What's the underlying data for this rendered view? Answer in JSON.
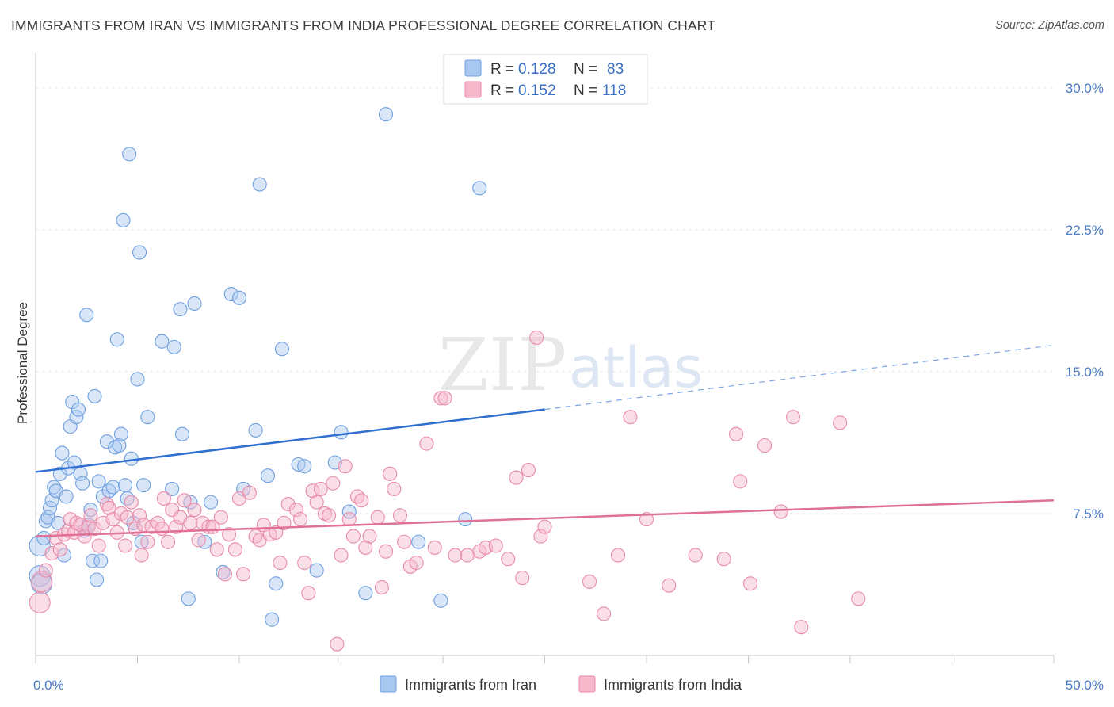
{
  "title": "IMMIGRANTS FROM IRAN VS IMMIGRANTS FROM INDIA PROFESSIONAL DEGREE CORRELATION CHART",
  "source": "Source: ZipAtlas.com",
  "watermark": {
    "zip": "ZIP",
    "atlas": "atlas"
  },
  "legend": {
    "rows": [
      {
        "r_label": "R =",
        "r_value": "0.128",
        "n_label": "N =",
        "n_value": "83",
        "color": "#a9c8f0"
      },
      {
        "r_label": "R =",
        "r_value": "0.152",
        "n_label": "N =",
        "n_value": "118",
        "color": "#f6b8cb"
      }
    ]
  },
  "bottom_legend": [
    {
      "label": "Immigrants from Iran",
      "color": "#a9c8f0"
    },
    {
      "label": "Immigrants from India",
      "color": "#f6b8cb"
    }
  ],
  "chart_data": {
    "type": "scatter",
    "title": "IMMIGRANTS FROM IRAN VS IMMIGRANTS FROM INDIA PROFESSIONAL DEGREE CORRELATION CHART",
    "xlabel": "",
    "ylabel": "Professional Degree",
    "xlim": [
      0,
      50
    ],
    "ylim": [
      0,
      31.5
    ],
    "x_tick_labels": [
      "0.0%",
      "50.0%"
    ],
    "y_ticks": [
      7.5,
      15.0,
      22.5,
      30.0
    ],
    "y_tick_labels": [
      "7.5%",
      "15.0%",
      "22.5%",
      "30.0%"
    ],
    "grid": true,
    "legend_position": "top-center",
    "series": [
      {
        "name": "Immigrants from Iran",
        "color": "#6f9fe0",
        "fill": "#a9c8f0",
        "R": 0.128,
        "N": 83,
        "trend": {
          "x0": 0,
          "y0": 9.7,
          "x1": 25,
          "y1": 13.0,
          "dash_to_x": 50,
          "dash_to_y": 16.4
        },
        "points": [
          [
            0.2,
            5.8
          ],
          [
            0.2,
            4.2
          ],
          [
            0.3,
            3.8
          ],
          [
            0.4,
            6.2
          ],
          [
            0.5,
            7.1
          ],
          [
            0.6,
            7.3
          ],
          [
            0.7,
            7.8
          ],
          [
            0.8,
            8.2
          ],
          [
            0.9,
            8.9
          ],
          [
            1.0,
            8.7
          ],
          [
            1.1,
            7.0
          ],
          [
            1.2,
            9.6
          ],
          [
            1.3,
            10.7
          ],
          [
            1.4,
            5.3
          ],
          [
            1.5,
            8.4
          ],
          [
            1.6,
            9.9
          ],
          [
            1.7,
            12.1
          ],
          [
            1.8,
            13.4
          ],
          [
            1.9,
            10.2
          ],
          [
            2.0,
            12.6
          ],
          [
            2.1,
            13.0
          ],
          [
            2.2,
            9.6
          ],
          [
            2.3,
            9.1
          ],
          [
            2.4,
            6.6
          ],
          [
            2.5,
            18.0
          ],
          [
            2.6,
            6.9
          ],
          [
            2.7,
            7.7
          ],
          [
            2.8,
            5.0
          ],
          [
            2.9,
            13.7
          ],
          [
            3.0,
            4.0
          ],
          [
            3.1,
            9.2
          ],
          [
            3.2,
            5.0
          ],
          [
            3.3,
            8.4
          ],
          [
            3.5,
            11.3
          ],
          [
            3.6,
            8.7
          ],
          [
            3.8,
            8.9
          ],
          [
            3.9,
            11.0
          ],
          [
            4.0,
            16.7
          ],
          [
            4.1,
            11.1
          ],
          [
            4.2,
            11.7
          ],
          [
            4.3,
            23.0
          ],
          [
            4.4,
            9.0
          ],
          [
            4.5,
            8.3
          ],
          [
            4.6,
            26.5
          ],
          [
            4.7,
            10.4
          ],
          [
            4.8,
            7.0
          ],
          [
            5.0,
            14.6
          ],
          [
            5.1,
            21.3
          ],
          [
            5.2,
            6.0
          ],
          [
            5.3,
            9.0
          ],
          [
            5.5,
            12.6
          ],
          [
            6.2,
            16.6
          ],
          [
            6.7,
            8.8
          ],
          [
            6.8,
            16.3
          ],
          [
            7.1,
            18.3
          ],
          [
            7.2,
            11.7
          ],
          [
            7.5,
            3.0
          ],
          [
            7.6,
            8.1
          ],
          [
            7.8,
            18.6
          ],
          [
            8.3,
            6.0
          ],
          [
            8.6,
            8.1
          ],
          [
            9.2,
            4.4
          ],
          [
            9.6,
            19.1
          ],
          [
            10.0,
            18.9
          ],
          [
            10.2,
            8.8
          ],
          [
            10.8,
            11.9
          ],
          [
            11.0,
            24.9
          ],
          [
            11.4,
            9.5
          ],
          [
            11.6,
            1.9
          ],
          [
            11.8,
            3.8
          ],
          [
            12.1,
            16.2
          ],
          [
            12.9,
            10.1
          ],
          [
            13.2,
            10.0
          ],
          [
            13.8,
            4.5
          ],
          [
            14.7,
            10.2
          ],
          [
            15.0,
            11.8
          ],
          [
            15.4,
            7.6
          ],
          [
            16.2,
            3.3
          ],
          [
            17.2,
            28.6
          ],
          [
            18.8,
            6.0
          ],
          [
            19.9,
            2.9
          ],
          [
            21.1,
            7.2
          ],
          [
            21.8,
            24.7
          ]
        ]
      },
      {
        "name": "Immigrants from India",
        "color": "#e88aa8",
        "fill": "#f6b8cb",
        "R": 0.152,
        "N": 118,
        "trend": {
          "x0": 0,
          "y0": 6.3,
          "x1": 50,
          "y1": 8.2
        },
        "points": [
          [
            0.2,
            2.8
          ],
          [
            0.3,
            3.9
          ],
          [
            0.5,
            4.5
          ],
          [
            0.8,
            5.4
          ],
          [
            1.0,
            6.2
          ],
          [
            1.2,
            5.6
          ],
          [
            1.4,
            6.4
          ],
          [
            1.6,
            6.6
          ],
          [
            1.7,
            7.2
          ],
          [
            1.9,
            6.5
          ],
          [
            2.0,
            7.0
          ],
          [
            2.2,
            6.9
          ],
          [
            2.4,
            6.3
          ],
          [
            2.6,
            6.8
          ],
          [
            2.7,
            7.4
          ],
          [
            2.9,
            6.7
          ],
          [
            3.1,
            5.8
          ],
          [
            3.3,
            7.0
          ],
          [
            3.5,
            8.0
          ],
          [
            3.6,
            7.8
          ],
          [
            3.8,
            7.2
          ],
          [
            4.0,
            6.5
          ],
          [
            4.2,
            7.5
          ],
          [
            4.4,
            5.8
          ],
          [
            4.5,
            7.3
          ],
          [
            4.7,
            8.1
          ],
          [
            4.9,
            6.7
          ],
          [
            5.1,
            7.4
          ],
          [
            5.2,
            5.3
          ],
          [
            5.3,
            6.9
          ],
          [
            5.5,
            6.0
          ],
          [
            5.7,
            6.8
          ],
          [
            6.0,
            7.0
          ],
          [
            6.2,
            6.7
          ],
          [
            6.3,
            8.3
          ],
          [
            6.5,
            6.0
          ],
          [
            6.7,
            7.7
          ],
          [
            6.9,
            6.8
          ],
          [
            7.1,
            7.3
          ],
          [
            7.3,
            8.2
          ],
          [
            7.6,
            7.0
          ],
          [
            7.8,
            7.7
          ],
          [
            8.0,
            6.1
          ],
          [
            8.2,
            7.0
          ],
          [
            8.5,
            6.8
          ],
          [
            8.7,
            6.8
          ],
          [
            8.9,
            5.6
          ],
          [
            9.1,
            7.3
          ],
          [
            9.3,
            4.3
          ],
          [
            9.5,
            6.4
          ],
          [
            9.8,
            5.6
          ],
          [
            10.0,
            8.3
          ],
          [
            10.2,
            4.3
          ],
          [
            10.5,
            8.6
          ],
          [
            10.8,
            6.3
          ],
          [
            11.0,
            6.1
          ],
          [
            11.2,
            6.9
          ],
          [
            11.5,
            6.4
          ],
          [
            11.8,
            6.5
          ],
          [
            12.0,
            4.9
          ],
          [
            12.2,
            7.0
          ],
          [
            12.4,
            8.0
          ],
          [
            12.8,
            7.7
          ],
          [
            13.0,
            7.2
          ],
          [
            13.2,
            4.9
          ],
          [
            13.4,
            3.3
          ],
          [
            13.6,
            8.7
          ],
          [
            13.8,
            8.1
          ],
          [
            14.0,
            8.8
          ],
          [
            14.2,
            7.5
          ],
          [
            14.4,
            7.4
          ],
          [
            14.6,
            9.1
          ],
          [
            14.8,
            0.6
          ],
          [
            15.0,
            5.3
          ],
          [
            15.2,
            10.0
          ],
          [
            15.4,
            7.2
          ],
          [
            15.6,
            6.3
          ],
          [
            15.8,
            8.4
          ],
          [
            16.0,
            8.2
          ],
          [
            16.2,
            5.7
          ],
          [
            16.4,
            6.3
          ],
          [
            16.8,
            7.3
          ],
          [
            17.0,
            3.6
          ],
          [
            17.2,
            5.5
          ],
          [
            17.4,
            9.6
          ],
          [
            17.6,
            8.8
          ],
          [
            17.9,
            7.4
          ],
          [
            18.1,
            6.0
          ],
          [
            18.4,
            4.7
          ],
          [
            18.7,
            4.9
          ],
          [
            19.2,
            11.2
          ],
          [
            19.6,
            5.7
          ],
          [
            19.9,
            13.6
          ],
          [
            20.1,
            13.6
          ],
          [
            20.6,
            5.3
          ],
          [
            21.2,
            5.3
          ],
          [
            21.8,
            5.5
          ],
          [
            22.1,
            5.7
          ],
          [
            22.6,
            5.8
          ],
          [
            23.2,
            5.1
          ],
          [
            23.6,
            9.4
          ],
          [
            23.9,
            4.1
          ],
          [
            24.2,
            9.8
          ],
          [
            24.6,
            16.8
          ],
          [
            24.8,
            6.3
          ],
          [
            25.0,
            6.8
          ],
          [
            27.2,
            3.9
          ],
          [
            27.9,
            2.2
          ],
          [
            28.6,
            5.3
          ],
          [
            29.2,
            12.6
          ],
          [
            30.0,
            7.2
          ],
          [
            31.1,
            3.7
          ],
          [
            32.4,
            5.3
          ],
          [
            33.8,
            5.1
          ],
          [
            34.4,
            11.7
          ],
          [
            34.6,
            9.2
          ],
          [
            35.1,
            3.8
          ],
          [
            35.8,
            11.1
          ],
          [
            36.6,
            7.6
          ],
          [
            37.2,
            12.6
          ],
          [
            37.6,
            1.5
          ],
          [
            39.5,
            12.3
          ],
          [
            40.4,
            3.0
          ]
        ]
      }
    ]
  }
}
